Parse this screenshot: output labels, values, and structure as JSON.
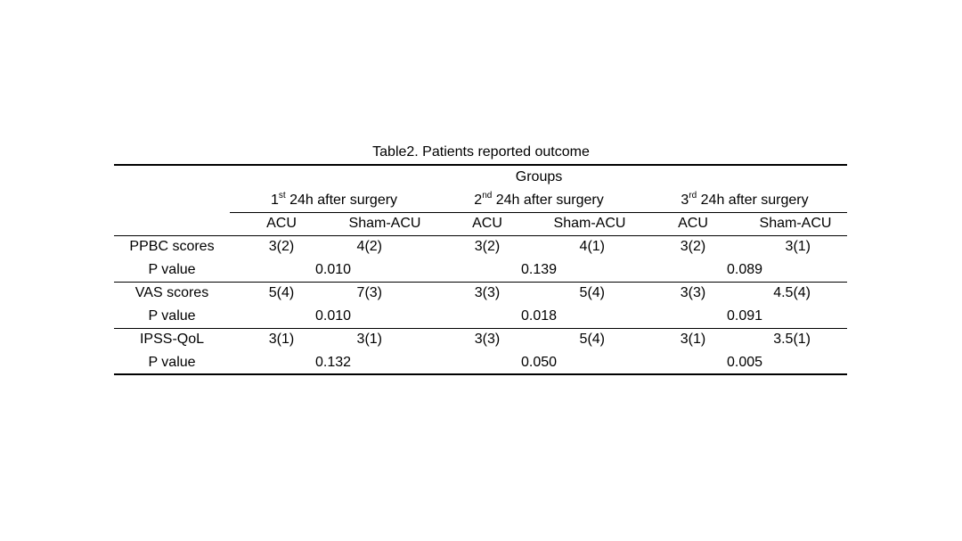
{
  "table": {
    "caption": "Table2. Patients reported outcome",
    "groups_label": "Groups",
    "periods": [
      {
        "num": "1",
        "sup": "st",
        "rest": " 24h after surgery"
      },
      {
        "num": "2",
        "sup": "nd",
        "rest": " 24h after surgery"
      },
      {
        "num": "3",
        "sup": "rd",
        "rest": " 24h after surgery"
      }
    ],
    "subheaders": [
      "ACU",
      "Sham-ACU",
      "ACU",
      "Sham-ACU",
      "ACU",
      "Sham-ACU"
    ],
    "rows": [
      {
        "label": "PPBC scores",
        "values": [
          "3(2)",
          "4(2)",
          "3(2)",
          "4(1)",
          "3(2)",
          "3(1)"
        ]
      },
      {
        "label": "P value",
        "pvalues": [
          "0.010",
          "0.139",
          "0.089"
        ]
      },
      {
        "label": "VAS scores",
        "values": [
          "5(4)",
          "7(3)",
          "3(3)",
          "5(4)",
          "3(3)",
          "4.5(4)"
        ]
      },
      {
        "label": "P value",
        "pvalues": [
          "0.010",
          "0.018",
          "0.091"
        ]
      },
      {
        "label": "IPSS-QoL",
        "values": [
          "3(1)",
          "3(1)",
          "3(3)",
          "5(4)",
          "3(1)",
          "3.5(1)"
        ]
      },
      {
        "label": "P value",
        "pvalues": [
          "0.132",
          "0.050",
          "0.005"
        ]
      }
    ]
  }
}
